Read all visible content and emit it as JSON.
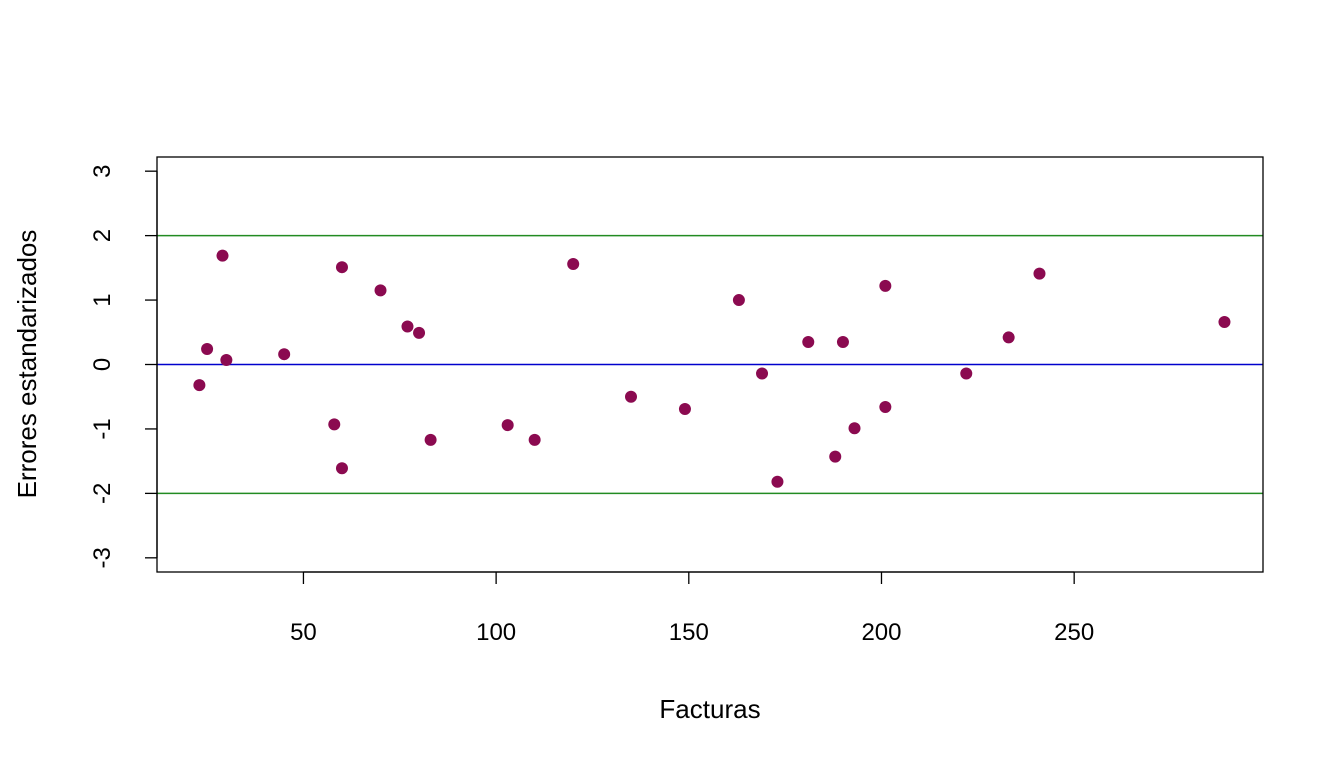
{
  "chart_data": {
    "type": "scatter",
    "title": "",
    "xlabel": "Facturas",
    "ylabel": "Errores estandarizados",
    "xlim": [
      12,
      299
    ],
    "ylim": [
      -3.22,
      3.22
    ],
    "x_ticks": [
      50,
      100,
      150,
      200,
      250
    ],
    "y_ticks": [
      -3,
      -2,
      -1,
      0,
      1,
      2,
      3
    ],
    "x_tick_labels": [
      "50",
      "100",
      "150",
      "200",
      "250"
    ],
    "y_tick_labels": [
      "-3",
      "-2",
      "-1",
      "0",
      "1",
      "2",
      "3"
    ],
    "grid": false,
    "point_color": "#8B0A50",
    "reference_lines": [
      {
        "y": 2,
        "color": "#228B22"
      },
      {
        "y": 0,
        "color": "#0000CD"
      },
      {
        "y": -2,
        "color": "#228B22"
      }
    ],
    "points": [
      {
        "x": 23,
        "y": -0.32
      },
      {
        "x": 25,
        "y": 0.24
      },
      {
        "x": 29,
        "y": 1.69
      },
      {
        "x": 30,
        "y": 0.07
      },
      {
        "x": 45,
        "y": 0.16
      },
      {
        "x": 58,
        "y": -0.93
      },
      {
        "x": 60,
        "y": 1.51
      },
      {
        "x": 60,
        "y": -1.61
      },
      {
        "x": 70,
        "y": 1.15
      },
      {
        "x": 77,
        "y": 0.59
      },
      {
        "x": 80,
        "y": 0.49
      },
      {
        "x": 83,
        "y": -1.17
      },
      {
        "x": 103,
        "y": -0.94
      },
      {
        "x": 110,
        "y": -1.17
      },
      {
        "x": 120,
        "y": 1.56
      },
      {
        "x": 135,
        "y": -0.5
      },
      {
        "x": 149,
        "y": -0.69
      },
      {
        "x": 163,
        "y": 1.0
      },
      {
        "x": 169,
        "y": -0.14
      },
      {
        "x": 173,
        "y": -1.82
      },
      {
        "x": 181,
        "y": 0.35
      },
      {
        "x": 188,
        "y": -1.43
      },
      {
        "x": 190,
        "y": 0.35
      },
      {
        "x": 193,
        "y": -0.99
      },
      {
        "x": 201,
        "y": 1.22
      },
      {
        "x": 201,
        "y": -0.66
      },
      {
        "x": 222,
        "y": -0.14
      },
      {
        "x": 233,
        "y": 0.42
      },
      {
        "x": 241,
        "y": 1.41
      },
      {
        "x": 289,
        "y": 0.66
      }
    ]
  }
}
